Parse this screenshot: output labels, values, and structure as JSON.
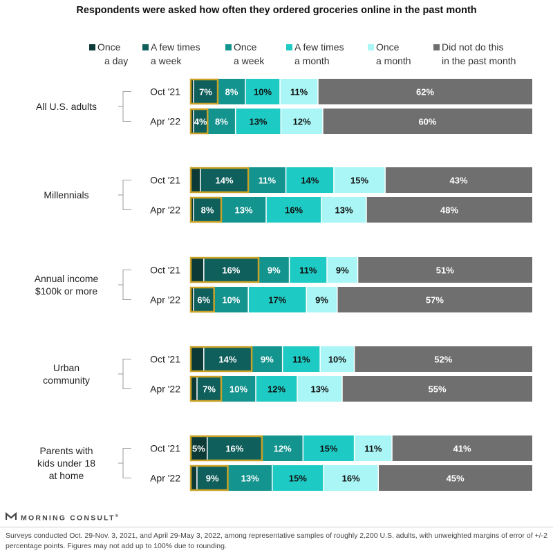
{
  "title": "Respondents were asked how often they ordered groceries online in the past month",
  "legend": [
    {
      "line1": "Once",
      "line2": "a day",
      "color": "#0c3a36"
    },
    {
      "line1": "A few times",
      "line2": "a week",
      "color": "#0f5f5c"
    },
    {
      "line1": "Once",
      "line2": "a week",
      "color": "#14948f"
    },
    {
      "line1": "A few times",
      "line2": "a month",
      "color": "#1ecbc4"
    },
    {
      "line1": "Once",
      "line2": "a month",
      "color": "#aaf5f5"
    },
    {
      "line1": "Did not do this",
      "line2": "in the past month",
      "color": "#6f6f6f"
    }
  ],
  "chart_data": {
    "type": "bar",
    "orientation": "horizontal",
    "stacked": true,
    "title": "Respondents were asked how often they ordered groceries online in the past month",
    "series_names": [
      "Once a day",
      "A few times a week",
      "Once a week",
      "A few times a month",
      "Once a month",
      "Did not do this in the past month"
    ],
    "highlighted_series": [
      "Once a day",
      "A few times a week"
    ],
    "groups": [
      {
        "name_lines": [
          "All U.S. adults"
        ],
        "rows": [
          {
            "label": "Oct '21",
            "values": [
              1,
              7,
              8,
              10,
              11,
              62
            ],
            "labels": [
              "",
              "7%",
              "8%",
              "10%",
              "11%",
              "62%"
            ]
          },
          {
            "label": "Apr '22",
            "values": [
              1,
              4,
              8,
              13,
              12,
              60
            ],
            "labels": [
              "",
              "4%",
              "8%",
              "13%",
              "12%",
              "60%"
            ]
          }
        ]
      },
      {
        "name_lines": [
          "Millennials"
        ],
        "rows": [
          {
            "label": "Oct '21",
            "values": [
              3,
              14,
              11,
              14,
              15,
              43
            ],
            "labels": [
              "",
              "14%",
              "11%",
              "14%",
              "15%",
              "43%"
            ]
          },
          {
            "label": "Apr '22",
            "values": [
              1,
              8,
              13,
              16,
              13,
              48
            ],
            "labels": [
              "",
              "8%",
              "13%",
              "16%",
              "13%",
              "48%"
            ]
          }
        ]
      },
      {
        "name_lines": [
          "Annual income",
          "$100k or more"
        ],
        "rows": [
          {
            "label": "Oct '21",
            "values": [
              4,
              16,
              9,
              11,
              9,
              51
            ],
            "labels": [
              "",
              "16%",
              "9%",
              "11%",
              "9%",
              "51%"
            ]
          },
          {
            "label": "Apr '22",
            "values": [
              1,
              6,
              10,
              17,
              9,
              57
            ],
            "labels": [
              "",
              "6%",
              "10%",
              "17%",
              "9%",
              "57%"
            ]
          }
        ]
      },
      {
        "name_lines": [
          "Urban",
          "community"
        ],
        "rows": [
          {
            "label": "Oct '21",
            "values": [
              4,
              14,
              9,
              11,
              10,
              52
            ],
            "labels": [
              "",
              "14%",
              "9%",
              "11%",
              "10%",
              "52%"
            ]
          },
          {
            "label": "Apr '22",
            "values": [
              2,
              7,
              10,
              12,
              13,
              55
            ],
            "labels": [
              "",
              "7%",
              "10%",
              "12%",
              "13%",
              "55%"
            ]
          }
        ]
      },
      {
        "name_lines": [
          "Parents with",
          "kids under 18",
          "at home"
        ],
        "rows": [
          {
            "label": "Oct '21",
            "values": [
              5,
              16,
              12,
              15,
              11,
              41
            ],
            "labels": [
              "5%",
              "16%",
              "12%",
              "15%",
              "11%",
              "41%"
            ]
          },
          {
            "label": "Apr '22",
            "values": [
              2,
              9,
              13,
              15,
              16,
              45
            ],
            "labels": [
              "",
              "9%",
              "13%",
              "15%",
              "16%",
              "45%"
            ]
          }
        ]
      }
    ],
    "xlim": [
      0,
      100
    ]
  },
  "logo": {
    "text": "MORNING CONSULT",
    "mark": "®"
  },
  "footnote": "Surveys conducted Oct. 29-Nov. 3, 2021, and April 29-May 3, 2022, among representative samples of roughly 2,200 U.S. adults, with unweighted margins of error of +/-2 percentage points. Figures may not add up to 100% due to rounding."
}
